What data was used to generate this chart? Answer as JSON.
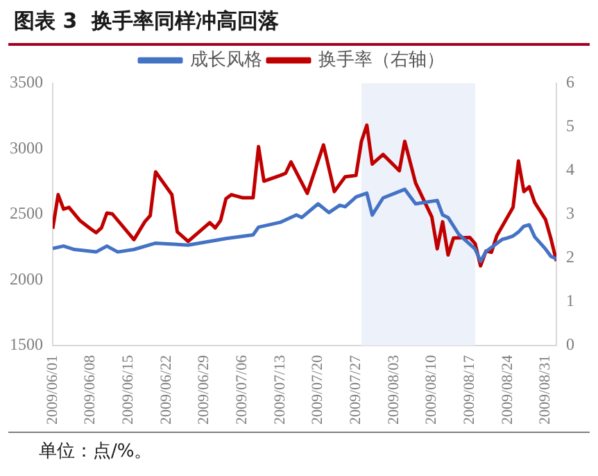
{
  "chart_data": {
    "type": "line",
    "title": "图表 3  换手率同样冲高回落",
    "annotations": [
      "单位：点/%。"
    ],
    "xlim": [
      "2009-06-01",
      "2009-09-02"
    ],
    "xticks": [
      {
        "value": "2009-06-01",
        "label": "2009/06/01"
      },
      {
        "value": "2009-06-08",
        "label": "2009/06/08"
      },
      {
        "value": "2009-06-15",
        "label": "2009/06/15"
      },
      {
        "value": "2009-06-22",
        "label": "2009/06/22"
      },
      {
        "value": "2009-06-29",
        "label": "2009/06/29"
      },
      {
        "value": "2009-07-06",
        "label": "2009/07/06"
      },
      {
        "value": "2009-07-13",
        "label": "2009/07/13"
      },
      {
        "value": "2009-07-20",
        "label": "2009/07/20"
      },
      {
        "value": "2009-07-27",
        "label": "2009/07/27"
      },
      {
        "value": "2009-08-03",
        "label": "2009/08/03"
      },
      {
        "value": "2009-08-10",
        "label": "2009/08/10"
      },
      {
        "value": "2009-08-17",
        "label": "2009/08/17"
      },
      {
        "value": "2009-08-24",
        "label": "2009/08/24"
      },
      {
        "value": "2009-08-31",
        "label": "2009/08/31"
      }
    ],
    "ylim": [
      1500,
      3500
    ],
    "yticks": [
      1500,
      2000,
      2500,
      3000,
      3500
    ],
    "y2lim": [
      0,
      6
    ],
    "y2ticks": [
      0,
      1,
      2,
      3,
      4,
      5,
      6
    ],
    "grid": false,
    "legend": "top",
    "bands": [
      {
        "axis": "x",
        "from": "2009-07-28",
        "to": "2009-08-18",
        "color": "#edf1fa"
      }
    ],
    "series": [
      {
        "name": "成长风格",
        "color": "#4472c4",
        "x": [
          "2009-06-01",
          "2009-06-03",
          "2009-06-05",
          "2009-06-09",
          "2009-06-11",
          "2009-06-13",
          "2009-06-16",
          "2009-06-20",
          "2009-06-26",
          "2009-07-03",
          "2009-07-08",
          "2009-07-09",
          "2009-07-13",
          "2009-07-16",
          "2009-07-17",
          "2009-07-20",
          "2009-07-22",
          "2009-07-24",
          "2009-07-25",
          "2009-07-27",
          "2009-07-29",
          "2009-07-30",
          "2009-08-01",
          "2009-08-05",
          "2009-08-07",
          "2009-08-11",
          "2009-08-12",
          "2009-08-13",
          "2009-08-15",
          "2009-08-18",
          "2009-08-19",
          "2009-08-20",
          "2009-08-23",
          "2009-08-24",
          "2009-08-25",
          "2009-08-26",
          "2009-08-27",
          "2009-08-28",
          "2009-08-29",
          "2009-08-31",
          "2009-09-01",
          "2009-09-02"
        ],
        "values": [
          2240,
          2258,
          2232,
          2213,
          2258,
          2213,
          2232,
          2280,
          2265,
          2315,
          2343,
          2402,
          2439,
          2495,
          2476,
          2580,
          2513,
          2569,
          2558,
          2632,
          2662,
          2495,
          2625,
          2691,
          2580,
          2606,
          2495,
          2476,
          2346,
          2235,
          2142,
          2216,
          2309,
          2320,
          2335,
          2365,
          2409,
          2420,
          2328,
          2235,
          2179,
          2161
        ]
      },
      {
        "name": "换手率（右轴）",
        "color": "#c00000",
        "axis": "y2",
        "x": [
          "2009-06-01",
          "2009-06-02",
          "2009-06-03",
          "2009-06-04",
          "2009-06-06",
          "2009-06-08",
          "2009-06-09",
          "2009-06-10",
          "2009-06-11",
          "2009-06-12",
          "2009-06-16",
          "2009-06-18",
          "2009-06-19",
          "2009-06-20",
          "2009-06-23",
          "2009-06-24",
          "2009-06-26",
          "2009-06-30",
          "2009-07-01",
          "2009-07-02",
          "2009-07-03",
          "2009-07-04",
          "2009-07-06",
          "2009-07-08",
          "2009-07-09",
          "2009-07-10",
          "2009-07-13",
          "2009-07-14",
          "2009-07-15",
          "2009-07-18",
          "2009-07-21",
          "2009-07-23",
          "2009-07-25",
          "2009-07-27",
          "2009-07-28",
          "2009-07-29",
          "2009-07-30",
          "2009-08-01",
          "2009-08-04",
          "2009-08-05",
          "2009-08-07",
          "2009-08-10",
          "2009-08-11",
          "2009-08-12",
          "2009-08-13",
          "2009-08-14",
          "2009-08-17",
          "2009-08-18",
          "2009-08-19",
          "2009-08-20",
          "2009-08-21",
          "2009-08-22",
          "2009-08-25",
          "2009-08-26",
          "2009-08-27",
          "2009-08-28",
          "2009-08-29",
          "2009-08-31",
          "2009-09-01",
          "2009-09-02"
        ],
        "values": [
          2.67,
          3.45,
          3.12,
          3.16,
          2.86,
          2.67,
          2.58,
          2.69,
          3.03,
          3.01,
          2.42,
          2.83,
          2.97,
          3.97,
          3.45,
          2.6,
          2.38,
          2.81,
          2.69,
          2.86,
          3.36,
          3.45,
          3.38,
          3.38,
          4.55,
          3.76,
          3.89,
          3.94,
          4.2,
          3.48,
          4.59,
          3.52,
          3.86,
          3.89,
          4.67,
          5.04,
          4.15,
          4.37,
          4.0,
          4.67,
          3.72,
          2.94,
          2.21,
          2.83,
          2.07,
          2.46,
          2.47,
          2.33,
          1.82,
          2.16,
          2.13,
          2.51,
          3.16,
          4.22,
          3.52,
          3.63,
          3.27,
          2.88,
          2.44,
          1.93
        ]
      }
    ]
  }
}
